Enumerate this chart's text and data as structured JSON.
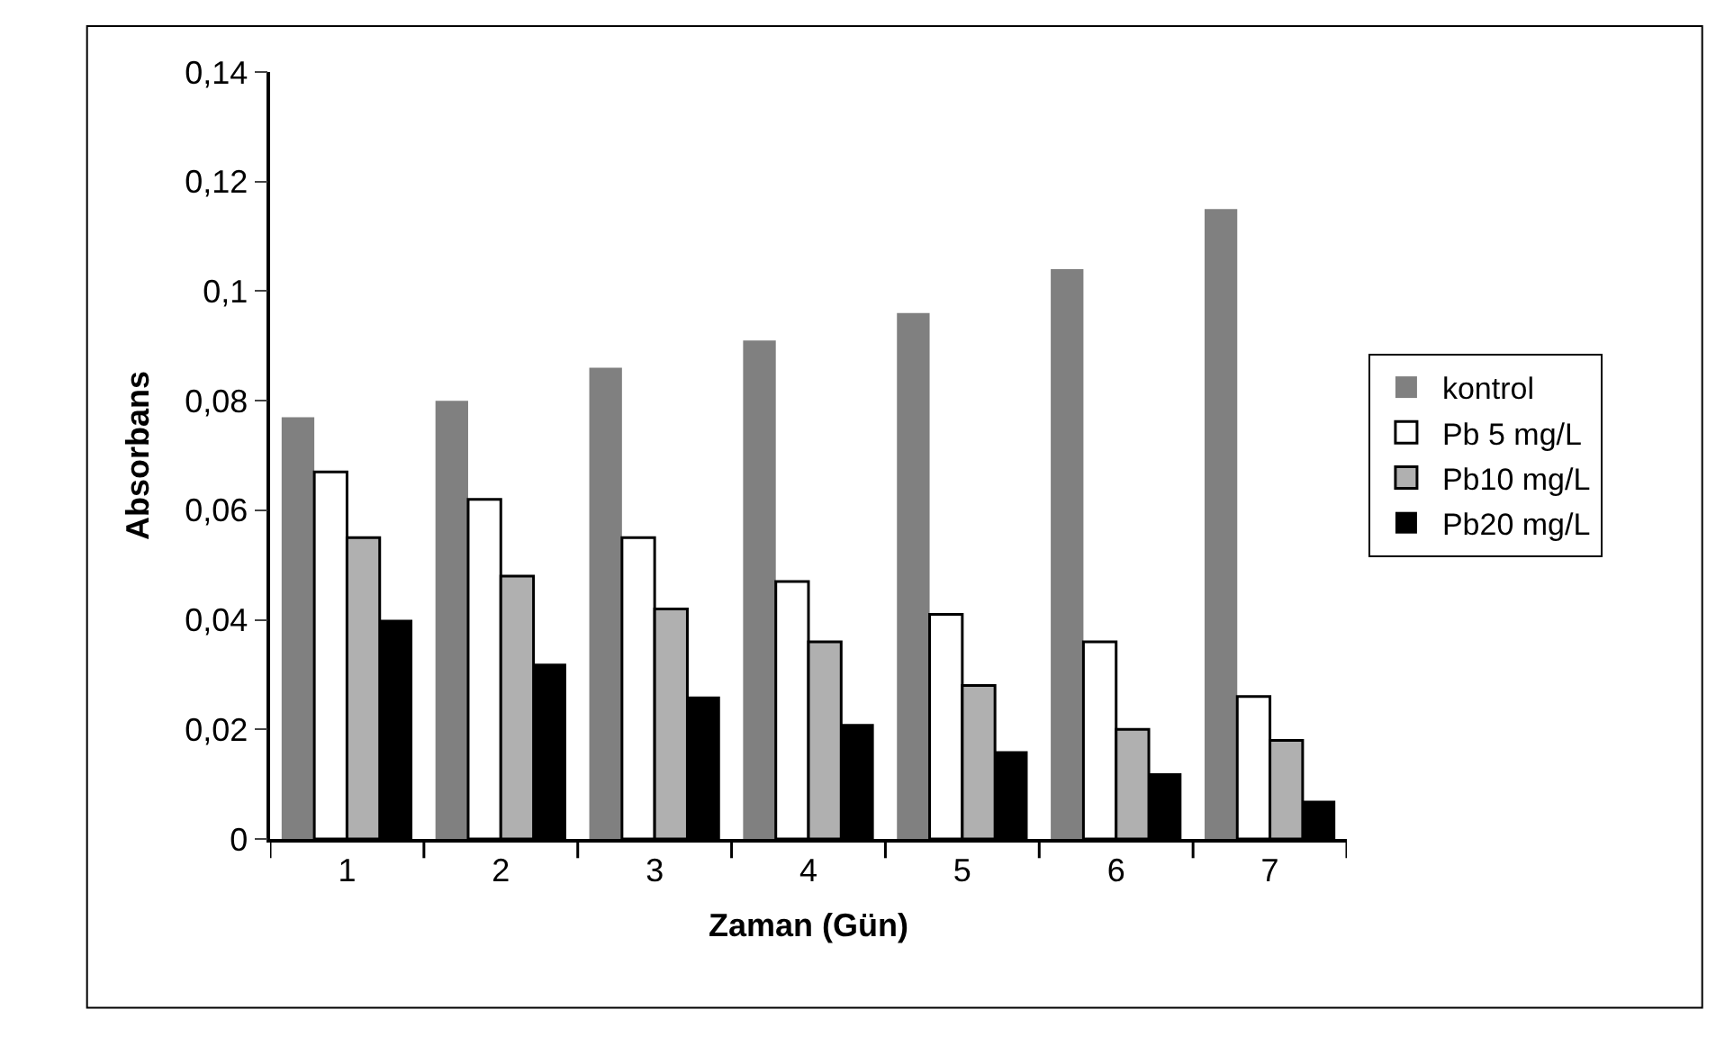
{
  "chart_data": {
    "type": "bar",
    "xlabel": "Zaman (Gün)",
    "ylabel": "Absorbans",
    "categories": [
      "1",
      "2",
      "3",
      "4",
      "5",
      "6",
      "7"
    ],
    "series": [
      {
        "name": "kontrol",
        "color": "#808080",
        "values": [
          0.077,
          0.08,
          0.086,
          0.091,
          0.096,
          0.104,
          0.115
        ]
      },
      {
        "name": "Pb 5 mg/L",
        "color": "#ffffff",
        "values": [
          0.067,
          0.062,
          0.055,
          0.047,
          0.041,
          0.036,
          0.026
        ]
      },
      {
        "name": "Pb10 mg/L",
        "color": "#b0b0b0",
        "values": [
          0.055,
          0.048,
          0.042,
          0.036,
          0.028,
          0.02,
          0.018
        ]
      },
      {
        "name": "Pb20 mg/L",
        "color": "#000000",
        "values": [
          0.04,
          0.032,
          0.026,
          0.021,
          0.016,
          0.012,
          0.007
        ]
      }
    ],
    "ylim": [
      0,
      0.14
    ],
    "yticks": [
      0,
      {
        "value": 0.02,
        "label": "0,02"
      },
      {
        "value": 0.04,
        "label": "0,04"
      },
      {
        "value": 0.06,
        "label": "0,06"
      },
      {
        "value": 0.08,
        "label": "0,08"
      },
      {
        "value": 0.1,
        "label": "0,1"
      },
      {
        "value": 0.12,
        "label": "0,12"
      },
      {
        "value": 0.14,
        "label": "0,14"
      }
    ],
    "grid": false,
    "legend": "right"
  }
}
